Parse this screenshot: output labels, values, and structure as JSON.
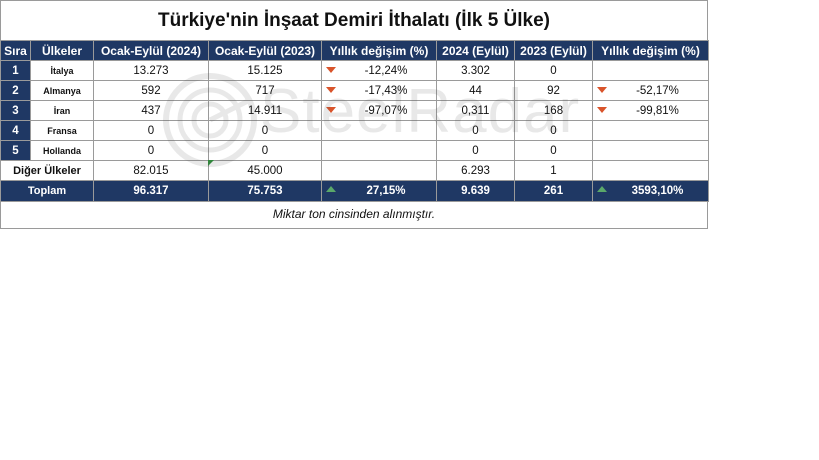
{
  "title": "Türkiye'nin İnşaat Demiri İthalatı (İlk 5 Ülke)",
  "headers": [
    "Sıra",
    "Ülkeler",
    "Ocak-Eylül (2024)",
    "Ocak-Eylül (2023)",
    "Yıllık değişim (%)",
    "2024 (Eylül)",
    "2023 (Eylül)",
    "Yıllık değişim (%)"
  ],
  "rows": [
    {
      "rank": "1",
      "country": "İtalya",
      "ytd2024": "13.273",
      "ytd2023": "15.125",
      "chg1": "-12,24%",
      "chg1_dir": "down",
      "m2024": "3.302",
      "m2023": "0",
      "chg2": "",
      "chg2_dir": ""
    },
    {
      "rank": "2",
      "country": "Almanya",
      "ytd2024": "592",
      "ytd2023": "717",
      "chg1": "-17,43%",
      "chg1_dir": "down",
      "m2024": "44",
      "m2023": "92",
      "chg2": "-52,17%",
      "chg2_dir": "down"
    },
    {
      "rank": "3",
      "country": "İran",
      "ytd2024": "437",
      "ytd2023": "14.911",
      "chg1": "-97,07%",
      "chg1_dir": "down",
      "m2024": "0,311",
      "m2023": "168",
      "chg2": "-99,81%",
      "chg2_dir": "down"
    },
    {
      "rank": "4",
      "country": "Fransa",
      "ytd2024": "0",
      "ytd2023": "0",
      "chg1": "",
      "chg1_dir": "",
      "m2024": "0",
      "m2023": "0",
      "chg2": "",
      "chg2_dir": ""
    },
    {
      "rank": "5",
      "country": "Hollanda",
      "ytd2024": "0",
      "ytd2023": "0",
      "chg1": "",
      "chg1_dir": "",
      "m2024": "0",
      "m2023": "0",
      "chg2": "",
      "chg2_dir": ""
    }
  ],
  "other": {
    "country": "Diğer Ülkeler",
    "ytd2024": "82.015",
    "ytd2023": "45.000",
    "chg1": "",
    "m2024": "6.293",
    "m2023": "1",
    "chg2": ""
  },
  "total": {
    "country": "Toplam",
    "ytd2024": "96.317",
    "ytd2023": "75.753",
    "chg1": "27,15%",
    "chg1_dir": "up",
    "m2024": "9.639",
    "m2023": "261",
    "chg2": "3593,10%",
    "chg2_dir": "up"
  },
  "footnote": "Miktar  ton cinsinden alınmıştır.",
  "watermark": "SteelRadar",
  "colors": {
    "header_bg": "#1f3864",
    "down_arrow": "#d9542b",
    "up_arrow": "#5aa86a"
  }
}
